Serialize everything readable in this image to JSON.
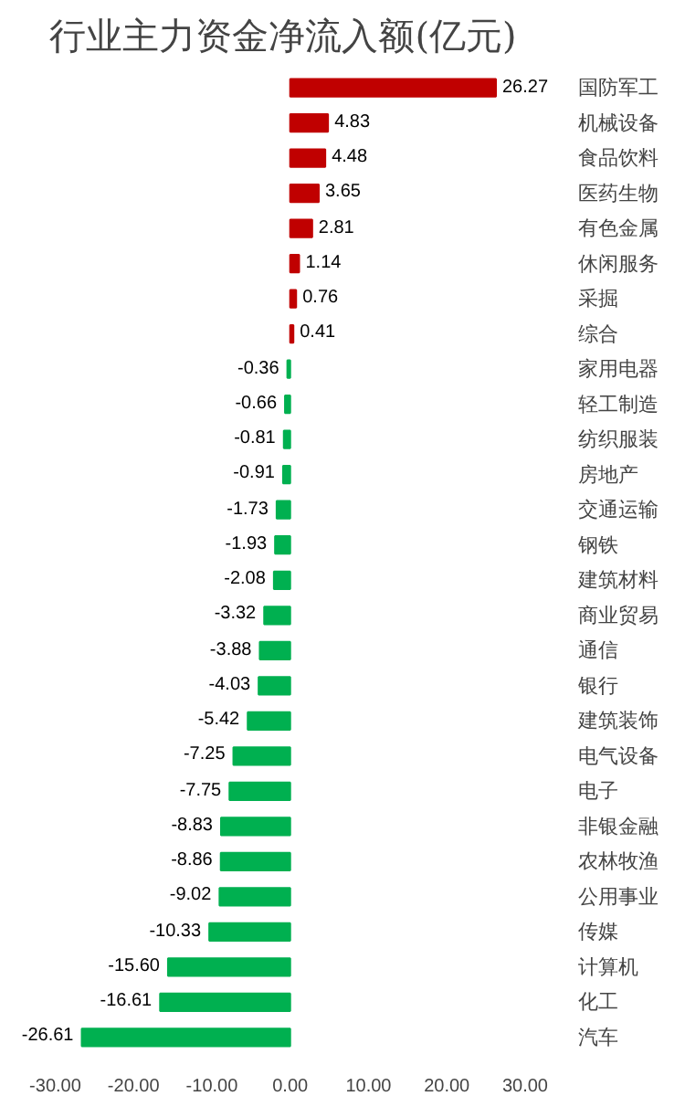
{
  "chart_data": {
    "type": "bar",
    "orientation": "horizontal",
    "title": "行业主力资金净流入额(亿元)",
    "categories": [
      "国防军工",
      "机械设备",
      "食品饮料",
      "医药生物",
      "有色金属",
      "休闲服务",
      "采掘",
      "综合",
      "家用电器",
      "轻工制造",
      "纺织服装",
      "房地产",
      "交通运输",
      "钢铁",
      "建筑材料",
      "商业贸易",
      "通信",
      "银行",
      "建筑装饰",
      "电气设备",
      "电子",
      "非银金融",
      "农林牧渔",
      "公用事业",
      "传媒",
      "计算机",
      "化工",
      "汽车"
    ],
    "values": [
      26.27,
      4.83,
      4.48,
      3.65,
      2.81,
      1.14,
      0.76,
      0.41,
      -0.36,
      -0.66,
      -0.81,
      -0.91,
      -1.73,
      -1.93,
      -2.08,
      -3.32,
      -3.88,
      -4.03,
      -5.42,
      -7.25,
      -7.75,
      -8.83,
      -8.86,
      -9.02,
      -10.33,
      -15.6,
      -16.61,
      -26.61
    ],
    "value_labels": [
      "26.27",
      "4.83",
      "4.48",
      "3.65",
      "2.81",
      "1.14",
      "0.76",
      "0.41",
      "-0.36",
      "-0.66",
      "-0.81",
      "-0.91",
      "-1.73",
      "-1.93",
      "-2.08",
      "-3.32",
      "-3.88",
      "-4.03",
      "-5.42",
      "-7.25",
      "-7.75",
      "-8.83",
      "-8.86",
      "-9.02",
      "-10.33",
      "-15.60",
      "-16.61",
      "-26.61"
    ],
    "colors": [
      "#c00000",
      "#c00000",
      "#c00000",
      "#c00000",
      "#c00000",
      "#c00000",
      "#c00000",
      "#c00000",
      "#00b050",
      "#00b050",
      "#00b050",
      "#00b050",
      "#00b050",
      "#00b050",
      "#00b050",
      "#00b050",
      "#00b050",
      "#00b050",
      "#00b050",
      "#00b050",
      "#00b050",
      "#00b050",
      "#00b050",
      "#00b050",
      "#00b050",
      "#00b050",
      "#00b050",
      "#00b050"
    ],
    "xlim": [
      -30,
      30
    ],
    "xticks": [
      {
        "value": -30,
        "label": "-30.00"
      },
      {
        "value": -20,
        "label": "-20.00"
      },
      {
        "value": -10,
        "label": "-10.00"
      },
      {
        "value": 0,
        "label": "0.00"
      },
      {
        "value": 10,
        "label": "10.00"
      },
      {
        "value": 20,
        "label": "20.00"
      },
      {
        "value": 30,
        "label": "30.00"
      }
    ],
    "grid": false
  }
}
